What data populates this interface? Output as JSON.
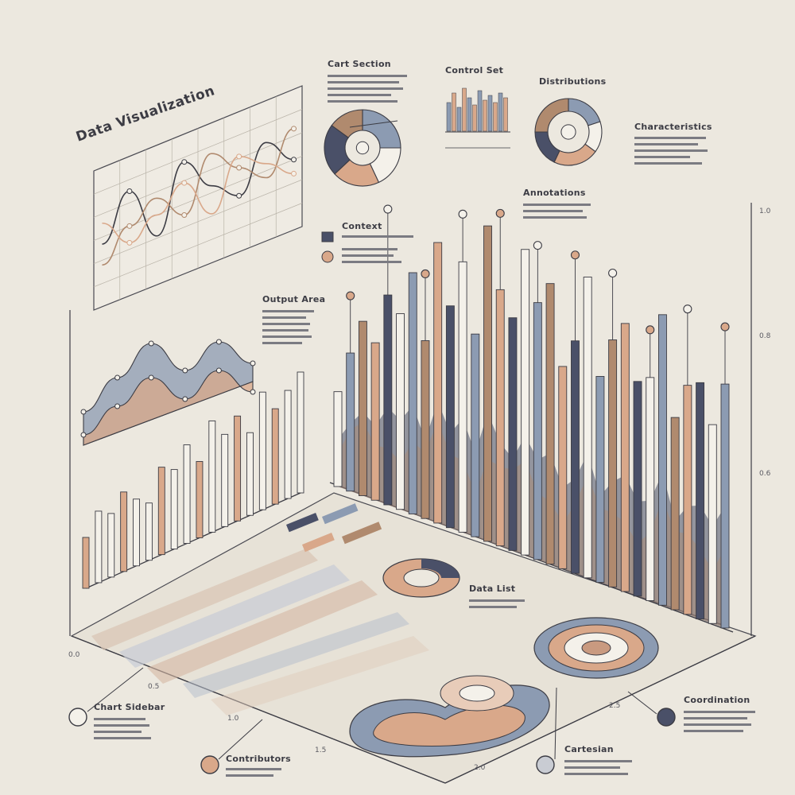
{
  "title": "Data Visualization",
  "colors": {
    "background": "#ece8df",
    "ink": "#3c3c44",
    "peach": "#d9a88a",
    "tan": "#b08a6e",
    "slate": "#8c9bb2",
    "navy": "#4a5068",
    "cream": "#f4f1ea"
  },
  "panel_labels": {
    "chart_section": "Cart Section",
    "control_set": "Control Set",
    "distributions": "Distributions",
    "characteristics": "Characteristics",
    "annotations": "Annotations",
    "context": "Context",
    "output_area": "Output Area",
    "chart_sidebar": "Chart Sidebar",
    "contributors": "Contributors",
    "cartesian": "Cartesian",
    "coordination": "Coordination",
    "data_list": "Data List"
  },
  "chart_data": [
    {
      "type": "line",
      "series": [
        {
          "values": [
            0.45,
            0.75,
            0.35,
            0.8,
            0.55,
            0.4,
            0.7,
            0.5
          ]
        },
        {
          "values": [
            0.3,
            0.5,
            0.62,
            0.42,
            0.78,
            0.6,
            0.45,
            0.72
          ]
        },
        {
          "values": [
            0.6,
            0.38,
            0.5,
            0.65,
            0.35,
            0.68,
            0.55,
            0.4
          ]
        }
      ]
    },
    {
      "type": "area",
      "series": [
        {
          "values": [
            0.3,
            0.55,
            0.8,
            0.5,
            0.7,
            0.45
          ]
        },
        {
          "values": [
            0.2,
            0.4,
            0.6,
            0.35,
            0.55,
            0.3
          ]
        }
      ]
    },
    {
      "type": "bar",
      "values": [
        0.32,
        0.45,
        0.4,
        0.5,
        0.42,
        0.36,
        0.55,
        0.5,
        0.62,
        0.48,
        0.7,
        0.58,
        0.66,
        0.52,
        0.74,
        0.6,
        0.68,
        0.76
      ]
    },
    {
      "type": "bar",
      "values": [
        0.35,
        0.5,
        0.62,
        0.55,
        0.72,
        0.66,
        0.8,
        0.58,
        0.9,
        0.7,
        0.84,
        0.62,
        0.95,
        0.76,
        0.68,
        0.88,
        0.74,
        0.82,
        0.6,
        0.7,
        0.92,
        0.64,
        0.78,
        0.86,
        0.7,
        0.74,
        0.98,
        0.66,
        0.8,
        0.84,
        0.72,
        0.9
      ]
    },
    {
      "type": "pie",
      "values": [
        25,
        18,
        20,
        22,
        15
      ]
    },
    {
      "type": "pie",
      "values": [
        20,
        15,
        22,
        18,
        25
      ]
    }
  ]
}
